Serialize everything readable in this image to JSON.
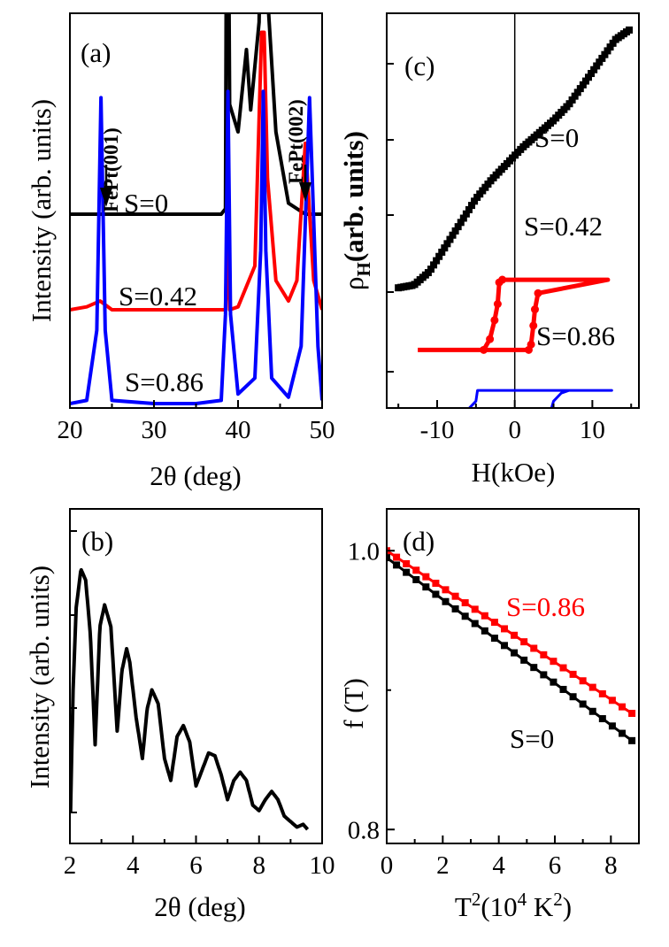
{
  "chart_data": [
    {
      "panel": "(a)",
      "type": "line",
      "xlabel": "2θ (deg)",
      "ylabel": "Intensity (arb. units)",
      "xlim": [
        20,
        50
      ],
      "xticks": [
        "20",
        "30",
        "40",
        "50"
      ],
      "annotations": [
        {
          "text": "FePt(001)",
          "x": 24
        },
        {
          "text": "FePt(002)",
          "x": 48.5
        }
      ],
      "series": [
        {
          "name": "S=0",
          "color": "#000000",
          "x": [
            20,
            24,
            30,
            35,
            38,
            38.5,
            38.7,
            39,
            40,
            41,
            41.5,
            42.5,
            43,
            43.5,
            44.5,
            46,
            48,
            50
          ],
          "y": [
            0.05,
            0.05,
            0.05,
            0.05,
            0.05,
            0.06,
            1.0,
            0.25,
            0.2,
            0.35,
            0.24,
            0.4,
            1.0,
            0.45,
            0.2,
            0.07,
            0.05,
            0.05
          ]
        },
        {
          "name": "S=0.42",
          "color": "#ff0000",
          "x": [
            20,
            22,
            23.6,
            25,
            30,
            35,
            38.5,
            38.7,
            39,
            40,
            42,
            42.8,
            43.1,
            43.5,
            44.5,
            46,
            47,
            48,
            49,
            50
          ],
          "y": [
            0.05,
            0.06,
            0.08,
            0.05,
            0.05,
            0.05,
            0.05,
            0.3,
            0.05,
            0.06,
            0.2,
            1.0,
            1.0,
            0.5,
            0.15,
            0.08,
            0.15,
            0.62,
            0.15,
            0.05
          ]
        },
        {
          "name": "S=0.86",
          "color": "#0000ff",
          "x": [
            20,
            22,
            23.2,
            23.7,
            24.2,
            25,
            30,
            35,
            38,
            38.5,
            38.8,
            39.1,
            40,
            42,
            42.7,
            43,
            43.3,
            44,
            46,
            47.5,
            48.5,
            49.5,
            50
          ],
          "y": [
            0.02,
            0.03,
            0.25,
            0.98,
            0.25,
            0.03,
            0.02,
            0.02,
            0.03,
            0.3,
            1.0,
            0.3,
            0.05,
            0.1,
            0.5,
            1.0,
            0.5,
            0.1,
            0.04,
            0.2,
            0.98,
            0.2,
            0.03
          ]
        }
      ]
    },
    {
      "panel": "(b)",
      "type": "line",
      "xlabel": "2θ (deg)",
      "ylabel": "Intensity (arb. units)",
      "ylog": true,
      "xlim": [
        2,
        10
      ],
      "xticks": [
        "2",
        "4",
        "6",
        "8",
        "10"
      ],
      "series": [
        {
          "color": "#000000",
          "x": [
            2.02,
            2.1,
            2.2,
            2.35,
            2.5,
            2.65,
            2.8,
            2.95,
            3.1,
            3.3,
            3.5,
            3.65,
            3.8,
            3.9,
            4.1,
            4.3,
            4.45,
            4.6,
            4.8,
            5.0,
            5.2,
            5.4,
            5.6,
            5.8,
            6.0,
            6.2,
            6.4,
            6.6,
            6.8,
            7.0,
            7.2,
            7.4,
            7.6,
            7.8,
            8.0,
            8.2,
            8.4,
            8.6,
            8.8,
            9.0,
            9.2,
            9.4,
            9.55
          ],
          "y": [
            0.1,
            0.55,
            0.85,
            0.99,
            0.95,
            0.75,
            0.35,
            0.78,
            0.86,
            0.78,
            0.4,
            0.62,
            0.7,
            0.65,
            0.45,
            0.3,
            0.48,
            0.55,
            0.5,
            0.3,
            0.22,
            0.38,
            0.42,
            0.36,
            0.2,
            0.26,
            0.32,
            0.31,
            0.24,
            0.15,
            0.22,
            0.25,
            0.22,
            0.13,
            0.11,
            0.15,
            0.18,
            0.15,
            0.09,
            0.07,
            0.05,
            0.06,
            0.04
          ]
        }
      ]
    },
    {
      "panel": "(c)",
      "type": "line",
      "xlabel": "H(kOe)",
      "ylabel": "ρH(arb. units)",
      "xlim": [
        -16.5,
        16
      ],
      "xticks": [
        "-10",
        "0",
        "10"
      ],
      "series": [
        {
          "name": "S=0",
          "color": "#000000",
          "x": [
            -15,
            -13,
            -11,
            -9,
            -7,
            -5,
            -3,
            -1,
            0,
            1,
            3,
            5,
            7,
            9,
            11,
            13,
            15
          ],
          "y": [
            0.36,
            0.37,
            0.42,
            0.51,
            0.6,
            0.69,
            0.76,
            0.82,
            0.85,
            0.88,
            0.93,
            0.98,
            1.04,
            1.12,
            1.2,
            1.28,
            1.32
          ]
        },
        {
          "name": "S=0.42",
          "color": "#ff0000",
          "x": [
            -12.5,
            -4,
            -3.2,
            -2.6,
            -2.2,
            -2.0,
            -1.6,
            12,
            3,
            2.6,
            2.4,
            2.1,
            1.8,
            -12.5
          ],
          "y": [
            0.13,
            0.13,
            0.17,
            0.24,
            0.3,
            0.38,
            0.39,
            0.39,
            0.34,
            0.28,
            0.22,
            0.15,
            0.13,
            0.13
          ]
        },
        {
          "name": "S=0.86",
          "color": "#0000ff",
          "x": [
            -13.5,
            -7,
            -6,
            -5,
            -4.8,
            12.5,
            7,
            6,
            5,
            4.6,
            -13.5
          ],
          "y": [
            -0.1,
            -0.1,
            -0.09,
            -0.06,
            -0.02,
            -0.02,
            -0.02,
            -0.03,
            -0.06,
            -0.1,
            -0.1
          ]
        }
      ]
    },
    {
      "panel": "(d)",
      "type": "line",
      "xlabel": "T2(104 K2)",
      "ylabel": "f (T)",
      "xlim": [
        0,
        9
      ],
      "ylim": [
        0.79,
        1.03
      ],
      "xticks": [
        "0",
        "2",
        "4",
        "6",
        "8"
      ],
      "yticks": [
        "0.8",
        "1.0"
      ],
      "series": [
        {
          "name": "S=0.86",
          "color": "#ff0000",
          "x": [
            0,
            9
          ],
          "y": [
            1.0,
            0.88
          ]
        },
        {
          "name": "S=0",
          "color": "#000000",
          "x": [
            0,
            9
          ],
          "y": [
            0.995,
            0.86
          ]
        }
      ]
    }
  ]
}
